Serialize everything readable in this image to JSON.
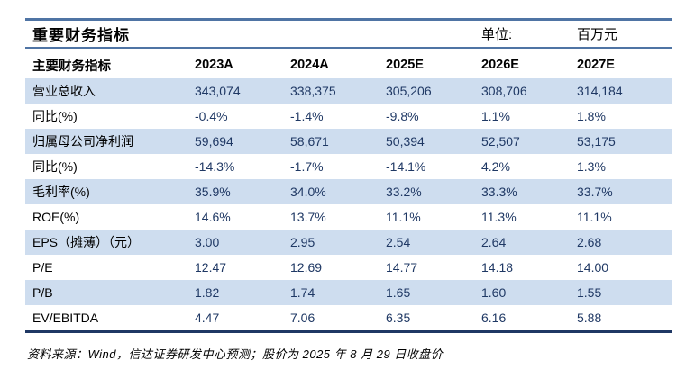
{
  "table": {
    "title": "重要财务指标",
    "unit_label": "单位:",
    "unit_value": "百万元",
    "header": [
      "主要财务指标",
      "2023A",
      "2024A",
      "2025E",
      "2026E",
      "2027E"
    ],
    "rows": [
      {
        "label": "营业总收入",
        "values": [
          "343,074",
          "338,375",
          "305,206",
          "308,706",
          "314,184"
        ]
      },
      {
        "label": "同比(%)",
        "values": [
          "-0.4%",
          "-1.4%",
          "-9.8%",
          "1.1%",
          "1.8%"
        ]
      },
      {
        "label": "归属母公司净利润",
        "values": [
          "59,694",
          "58,671",
          "50,394",
          "52,507",
          "53,175"
        ]
      },
      {
        "label": "同比(%)",
        "values": [
          "-14.3%",
          "-1.7%",
          "-14.1%",
          "4.2%",
          "1.3%"
        ]
      },
      {
        "label": "毛利率(%)",
        "values": [
          "35.9%",
          "34.0%",
          "33.2%",
          "33.3%",
          "33.7%"
        ]
      },
      {
        "label": "ROE(%)",
        "values": [
          "14.6%",
          "13.7%",
          "11.1%",
          "11.3%",
          "11.1%"
        ]
      },
      {
        "label": "EPS（摊薄）（元）",
        "values": [
          "3.00",
          "2.95",
          "2.54",
          "2.64",
          "2.68"
        ]
      },
      {
        "label": "P/E",
        "values": [
          "12.47",
          "12.69",
          "14.77",
          "14.18",
          "14.00"
        ]
      },
      {
        "label": "P/B",
        "values": [
          "1.82",
          "1.74",
          "1.65",
          "1.60",
          "1.55"
        ]
      },
      {
        "label": "EV/EBITDA",
        "values": [
          "4.47",
          "7.06",
          "6.35",
          "6.16",
          "5.88"
        ]
      }
    ],
    "source_note": "资料来源：Wind，信达证券研发中心预测；股价为 2025 年 8 月 29 日收盘价"
  },
  "colors": {
    "accent_rule": "#4F74A4",
    "dark_rule": "#1F3864",
    "band_background": "#CEDDEF",
    "value_text": "#1F3864",
    "label_text": "#000000"
  }
}
